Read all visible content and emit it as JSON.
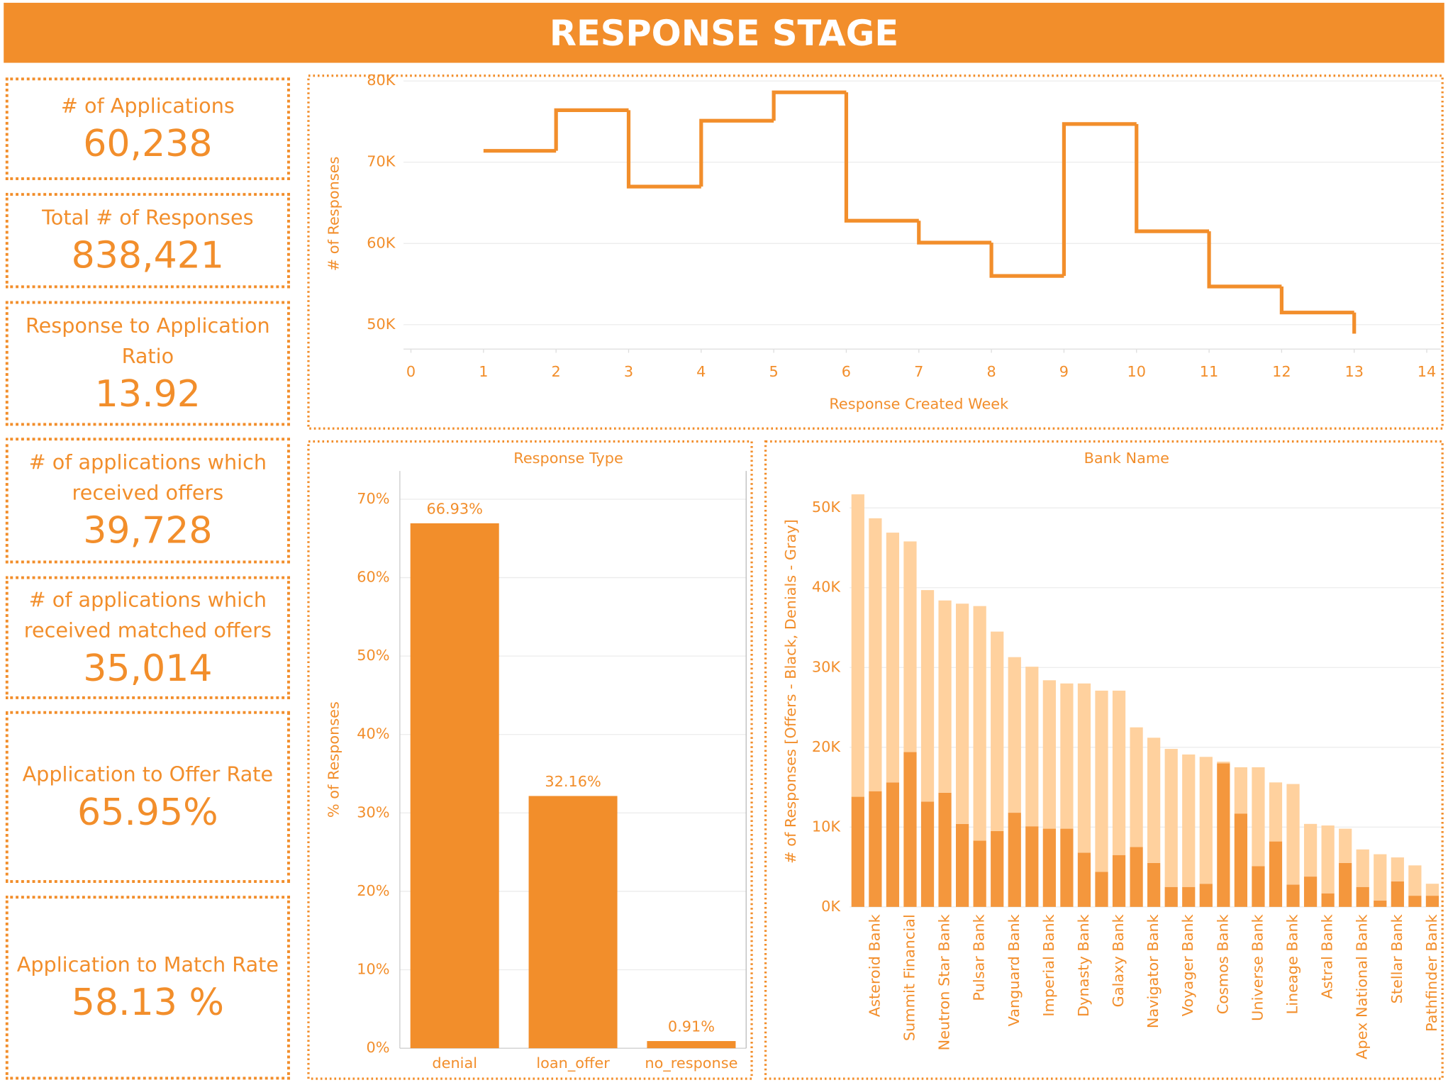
{
  "header": {
    "title": "RESPONSE STAGE"
  },
  "kpis": [
    {
      "label": "# of Applications",
      "value": "60,238"
    },
    {
      "label": "Total # of Responses",
      "value": "838,421"
    },
    {
      "label": "Response to Application Ratio",
      "value": "13.92"
    },
    {
      "label": "# of applications which received offers",
      "value": "39,728"
    },
    {
      "label": "# of applications which received matched offers",
      "value": "35,014"
    },
    {
      "label": "Application to Offer Rate",
      "value": "65.95%"
    },
    {
      "label": "Application to Match Rate",
      "value": "58.13 %"
    }
  ],
  "chart_data": [
    {
      "type": "step_line",
      "x_label": "Response Created Week",
      "y_label": "# of Responses",
      "x": [
        1,
        2,
        3,
        4,
        5,
        6,
        7,
        8,
        9,
        10,
        11,
        12,
        13
      ],
      "values": [
        71400,
        76400,
        67000,
        75100,
        78600,
        62800,
        60100,
        56000,
        74700,
        61500,
        54700,
        51500,
        48900
      ],
      "color": "#f28e2b",
      "xlim": [
        0,
        14
      ],
      "xticks": [
        0,
        1,
        2,
        3,
        4,
        5,
        6,
        7,
        8,
        9,
        10,
        11,
        12,
        13,
        14
      ],
      "ylim": [
        47000,
        80300
      ],
      "yticks": [
        {
          "value": 50000,
          "label": "50K"
        },
        {
          "value": 60000,
          "label": "60K"
        },
        {
          "value": 70000,
          "label": "70K"
        },
        {
          "value": 80000,
          "label": "80K"
        }
      ],
      "grid": true
    },
    {
      "type": "bar",
      "title": "Response Type",
      "y_label": "% of Responses",
      "categories": [
        "denial",
        "loan_offer",
        "no_response"
      ],
      "values": [
        66.93,
        32.16,
        0.91
      ],
      "value_labels": [
        "66.93%",
        "32.16%",
        "0.91%"
      ],
      "color": "#f28e2b",
      "ylim": [
        0,
        73.6
      ],
      "yticks": [
        {
          "value": 0,
          "label": "0%"
        },
        {
          "value": 10,
          "label": "10%"
        },
        {
          "value": 20,
          "label": "20%"
        },
        {
          "value": 30,
          "label": "30%"
        },
        {
          "value": 40,
          "label": "40%"
        },
        {
          "value": 50,
          "label": "50%"
        },
        {
          "value": 60,
          "label": "60%"
        },
        {
          "value": 70,
          "label": "70%"
        }
      ],
      "grid": true
    },
    {
      "type": "stacked_bar",
      "title": "Bank Name",
      "y_label": "# of Responses [Offers - Black, Denials - Gray]",
      "categories": [
        null,
        "Asteroid Bank",
        null,
        "Summit Financial",
        null,
        "Neutron Star Bank",
        null,
        "Pulsar Bank",
        null,
        "Vanguard Bank",
        null,
        "Imperial Bank",
        null,
        "Dynasty Bank",
        null,
        "Galaxy Bank",
        null,
        "Navigator Bank",
        null,
        "Voyager Bank",
        null,
        "Cosmos Bank",
        null,
        "Universe Bank",
        null,
        "Lineage Bank",
        null,
        "Astral Bank",
        null,
        "Apex National Bank",
        null,
        "Stellar Bank",
        null,
        "Pathfinder Bank"
      ],
      "series": [
        {
          "name": "Offers",
          "color": "#f4973d",
          "values": [
            13800,
            14500,
            15600,
            19400,
            13200,
            14300,
            10400,
            8300,
            9500,
            11800,
            10100,
            9800,
            9800,
            6800,
            4400,
            6500,
            7500,
            5500,
            2500,
            2500,
            2900,
            18000,
            11700,
            5100,
            8200,
            2800,
            3800,
            1700,
            5500,
            2500,
            800,
            3200,
            1400,
            1400
          ]
        },
        {
          "name": "Denials",
          "color": "#ffd19e",
          "values": [
            37900,
            34200,
            31300,
            26400,
            26500,
            24100,
            27600,
            29400,
            25000,
            19500,
            20000,
            18600,
            18200,
            21200,
            22700,
            20600,
            15000,
            15700,
            17300,
            16600,
            15900,
            200,
            5800,
            12400,
            7400,
            12600,
            6600,
            8500,
            4300,
            4700,
            5800,
            3000,
            3800,
            1500
          ]
        }
      ],
      "ylim": [
        0,
        54000
      ],
      "yticks": [
        {
          "value": 0,
          "label": "0K"
        },
        {
          "value": 10000,
          "label": "10K"
        },
        {
          "value": 20000,
          "label": "20K"
        },
        {
          "value": 30000,
          "label": "30K"
        },
        {
          "value": 40000,
          "label": "40K"
        },
        {
          "value": 50000,
          "label": "50K"
        }
      ],
      "grid": true
    }
  ]
}
